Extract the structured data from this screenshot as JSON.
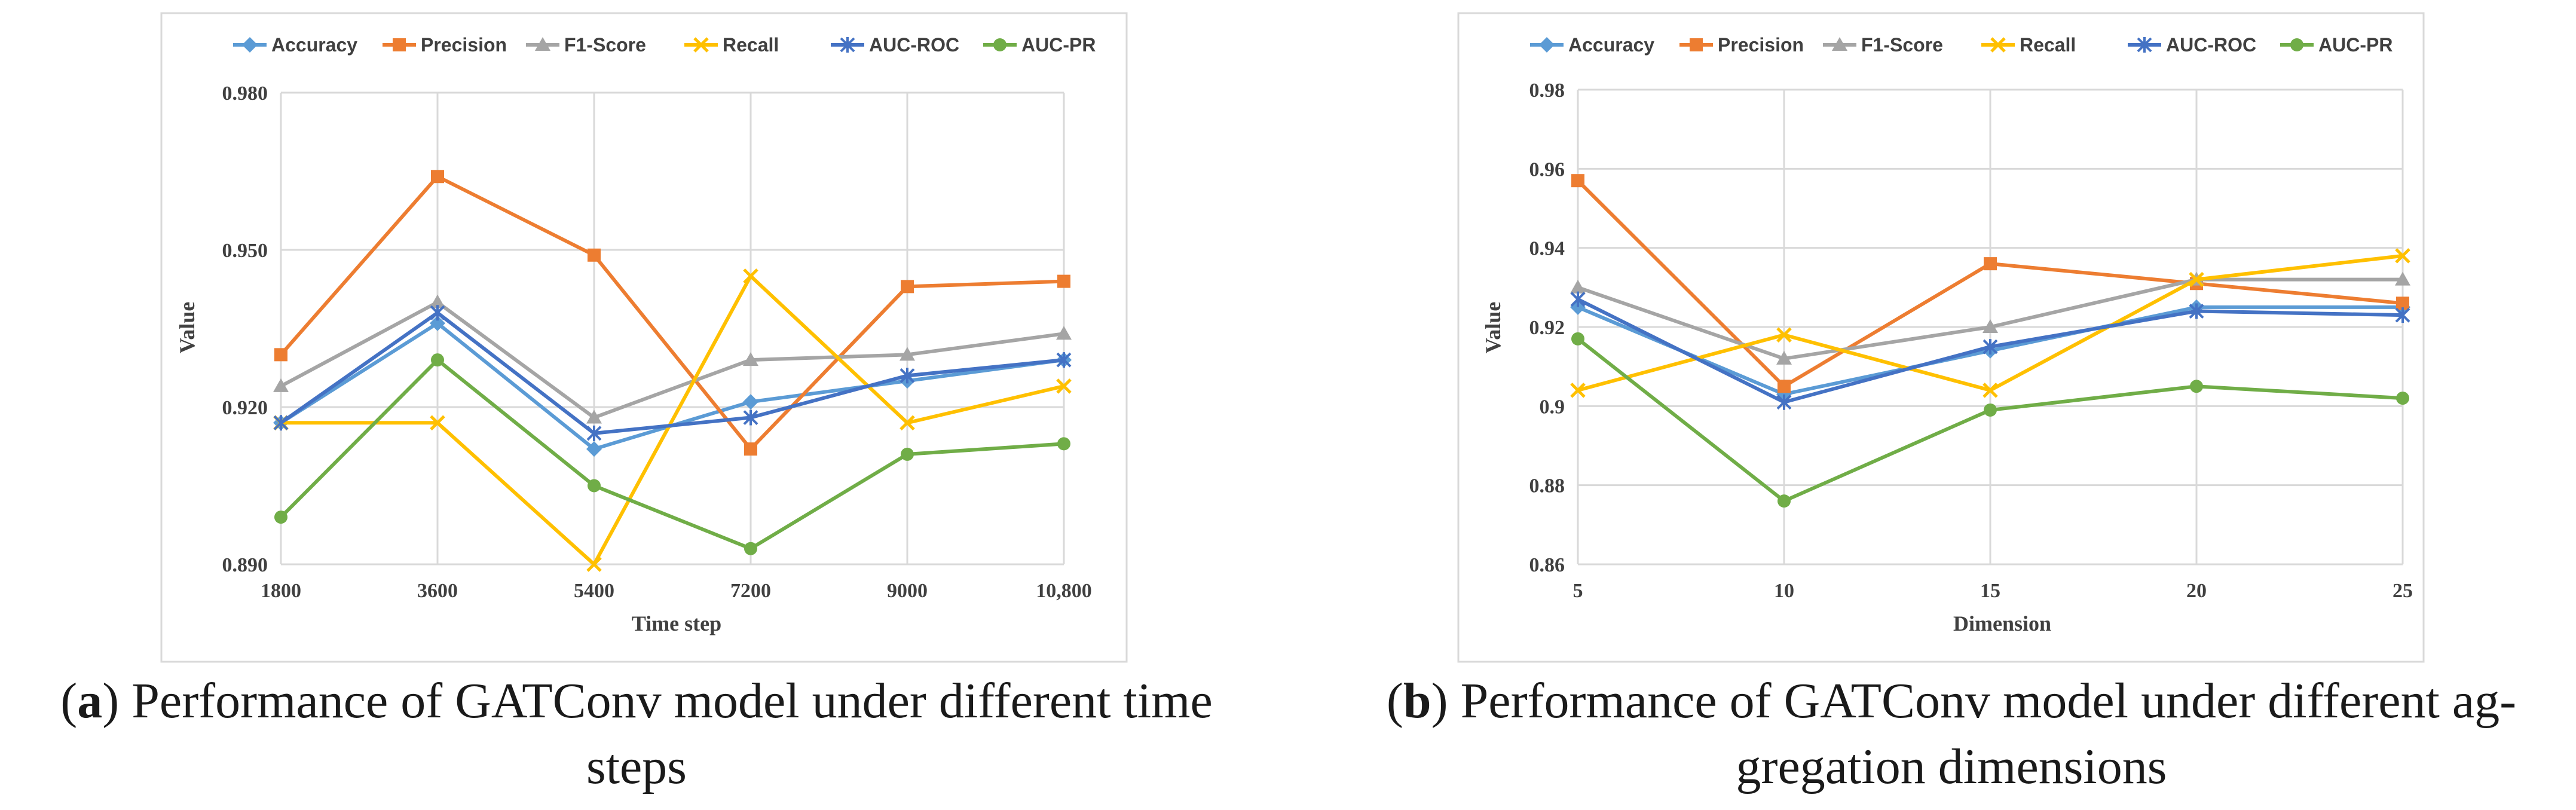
{
  "colors": {
    "Accuracy": "#5b9bd5",
    "Precision": "#ed7d31",
    "F1-Score": "#a5a5a5",
    "Recall": "#ffc000",
    "AUC-ROC": "#4472c4",
    "AUC-PR": "#70ad47"
  },
  "markers": {
    "Accuracy": "diamond",
    "Precision": "square",
    "F1-Score": "triangle",
    "Recall": "x",
    "AUC-ROC": "star",
    "AUC-PR": "circle"
  },
  "chart_data": [
    {
      "type": "line",
      "panel": "a",
      "xlabel": "Time step",
      "ylabel": "Value",
      "categories": [
        "1800",
        "3600",
        "5400",
        "7200",
        "9000",
        "10,800"
      ],
      "ylim": [
        0.89,
        0.98
      ],
      "yticks": [
        "0.890",
        "0.920",
        "0.950",
        "0.980"
      ],
      "legend": "top",
      "series": [
        {
          "name": "Accuracy",
          "values": [
            0.917,
            0.936,
            0.912,
            0.921,
            0.925,
            0.929
          ]
        },
        {
          "name": "Precision",
          "values": [
            0.93,
            0.964,
            0.949,
            0.912,
            0.943,
            0.944
          ]
        },
        {
          "name": "F1-Score",
          "values": [
            0.924,
            0.94,
            0.918,
            0.929,
            0.93,
            0.934
          ]
        },
        {
          "name": "Recall",
          "values": [
            0.917,
            0.917,
            0.89,
            0.945,
            0.917,
            0.924
          ]
        },
        {
          "name": "AUC-ROC",
          "values": [
            0.917,
            0.938,
            0.915,
            0.918,
            0.926,
            0.929
          ]
        },
        {
          "name": "AUC-PR",
          "values": [
            0.899,
            0.929,
            0.905,
            0.893,
            0.911,
            0.913
          ]
        }
      ]
    },
    {
      "type": "line",
      "panel": "b",
      "xlabel": "Dimension",
      "ylabel": "Value",
      "categories": [
        "5",
        "10",
        "15",
        "20",
        "25"
      ],
      "ylim": [
        0.86,
        0.98
      ],
      "yticks": [
        "0.86",
        "0.88",
        "0.9",
        "0.92",
        "0.94",
        "0.96",
        "0.98"
      ],
      "legend": "top",
      "series": [
        {
          "name": "Accuracy",
          "values": [
            0.925,
            0.903,
            0.914,
            0.925,
            0.925
          ]
        },
        {
          "name": "Precision",
          "values": [
            0.957,
            0.905,
            0.936,
            0.931,
            0.926
          ]
        },
        {
          "name": "F1-Score",
          "values": [
            0.93,
            0.912,
            0.92,
            0.932,
            0.932
          ]
        },
        {
          "name": "Recall",
          "values": [
            0.904,
            0.918,
            0.904,
            0.932,
            0.938
          ]
        },
        {
          "name": "AUC-ROC",
          "values": [
            0.927,
            0.901,
            0.915,
            0.924,
            0.923
          ]
        },
        {
          "name": "AUC-PR",
          "values": [
            0.917,
            0.876,
            0.899,
            0.905,
            0.902
          ]
        }
      ]
    }
  ],
  "captions": [
    {
      "label": "a",
      "open": "(",
      "close": ")",
      "line1": " Performance of GATConv model under different time",
      "line2": "steps"
    },
    {
      "label": "b",
      "open": "(",
      "close": ")",
      "line1": " Performance of GATConv model under different ag-",
      "line2": "gregation dimensions"
    }
  ]
}
